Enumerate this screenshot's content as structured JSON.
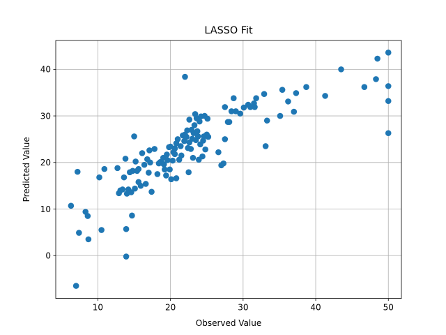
{
  "chart_data": {
    "type": "scatter",
    "title": "LASSO Fit",
    "xlabel": "Observed Value",
    "ylabel": "Predicted Value",
    "xlim": [
      4.2,
      51.8
    ],
    "ylim": [
      -9.2,
      46.2
    ],
    "xticks": [
      10,
      20,
      30,
      40,
      50
    ],
    "yticks": [
      0,
      10,
      20,
      30,
      40
    ],
    "grid": true,
    "marker_color": "#1f77b4",
    "series": [
      {
        "name": "predictions",
        "x": [
          6.3,
          7.0,
          7.2,
          7.4,
          8.3,
          8.6,
          8.7,
          10.2,
          10.5,
          10.9,
          12.7,
          12.9,
          13.1,
          13.4,
          13.6,
          13.8,
          13.9,
          13.9,
          14.0,
          14.2,
          14.4,
          14.6,
          14.7,
          14.8,
          15.0,
          15.1,
          15.2,
          15.4,
          15.6,
          15.6,
          15.9,
          16.1,
          16.4,
          16.6,
          16.8,
          17.0,
          17.1,
          17.2,
          17.4,
          17.8,
          18.2,
          18.4,
          18.6,
          18.8,
          19.0,
          19.1,
          19.2,
          19.4,
          19.5,
          19.6,
          19.8,
          19.9,
          20.0,
          20.1,
          20.3,
          20.4,
          20.6,
          20.6,
          20.8,
          20.8,
          21.0,
          21.2,
          21.4,
          21.5,
          21.7,
          21.9,
          22.0,
          22.0,
          22.2,
          22.3,
          22.4,
          22.5,
          22.6,
          22.6,
          22.8,
          22.9,
          23.0,
          23.1,
          23.2,
          23.3,
          23.4,
          23.5,
          23.6,
          23.7,
          23.8,
          23.9,
          24.0,
          24.1,
          24.2,
          24.4,
          24.5,
          24.6,
          24.7,
          24.8,
          25.0,
          25.1,
          25.2,
          26.6,
          27.0,
          27.3,
          27.5,
          27.5,
          27.9,
          28.1,
          28.4,
          28.7,
          29.0,
          29.6,
          30.1,
          30.7,
          31.0,
          31.5,
          31.6,
          31.8,
          32.9,
          33.1,
          33.3,
          35.1,
          35.4,
          36.2,
          37.0,
          37.3,
          38.7,
          41.3,
          43.5,
          46.7,
          48.3,
          48.5,
          50.0,
          50.0,
          50.0,
          50.0
        ],
        "y": [
          10.7,
          -6.5,
          18.0,
          4.9,
          9.4,
          8.5,
          3.5,
          16.8,
          5.5,
          18.6,
          18.8,
          13.4,
          14.0,
          14.2,
          16.8,
          20.8,
          5.7,
          -0.2,
          13.3,
          14.2,
          17.9,
          13.6,
          8.6,
          18.2,
          25.6,
          14.4,
          20.2,
          18.2,
          15.8,
          18.6,
          15.0,
          22.0,
          19.5,
          15.4,
          20.7,
          17.8,
          22.6,
          20.0,
          13.7,
          22.9,
          17.5,
          19.8,
          20.1,
          19.9,
          21.0,
          19.6,
          18.5,
          17.2,
          21.7,
          20.5,
          23.3,
          18.5,
          23.4,
          16.4,
          20.4,
          22.2,
          21.8,
          23.0,
          24.1,
          16.6,
          25.0,
          20.6,
          23.5,
          21.5,
          25.8,
          24.6,
          38.4,
          26.0,
          25.5,
          26.9,
          23.1,
          17.9,
          29.2,
          24.3,
          22.9,
          27.0,
          25.1,
          21.0,
          26.3,
          28.0,
          30.4,
          24.8,
          29.5,
          26.7,
          25.6,
          20.6,
          28.8,
          23.9,
          29.9,
          21.3,
          24.7,
          25.6,
          30.0,
          22.8,
          26.0,
          29.4,
          25.5,
          22.2,
          19.4,
          19.8,
          25.0,
          31.9,
          28.7,
          28.7,
          31.0,
          33.8,
          31.0,
          30.5,
          31.8,
          32.4,
          31.9,
          32.7,
          31.9,
          33.8,
          34.7,
          23.5,
          29.0,
          30.0,
          35.6,
          33.1,
          30.9,
          34.9,
          36.2,
          34.3,
          40.0,
          36.2,
          37.9,
          42.3,
          43.6,
          36.4,
          33.2,
          26.3
        ]
      }
    ]
  }
}
